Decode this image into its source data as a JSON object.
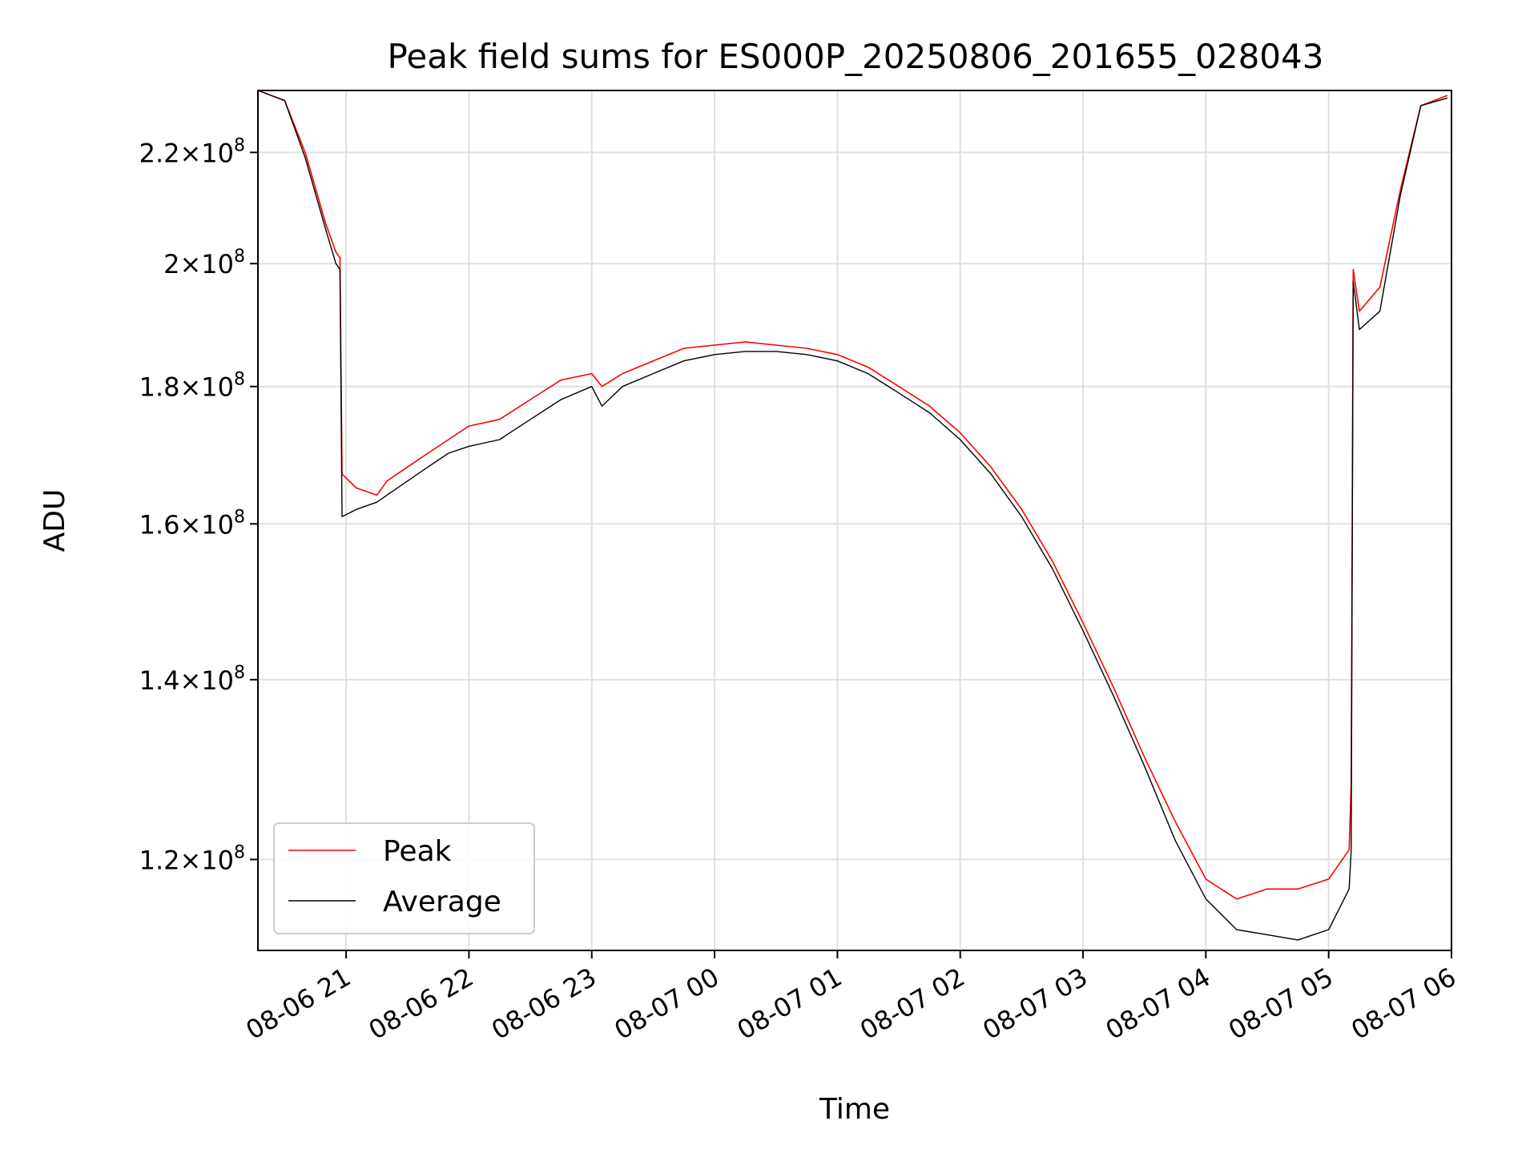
{
  "chart_data": {
    "type": "line",
    "title": "Peak field sums for ES000P_20250806_201655_028043",
    "xlabel": "Time",
    "ylabel": "ADU",
    "yscale": "log",
    "grid": true,
    "legend_position": "lower-left",
    "xlim": [
      "2025-08-06 20:16:55",
      "2025-08-07 06:00"
    ],
    "ylim": [
      111000000,
      232000000
    ],
    "x_ticks": [
      "08-06 21",
      "08-06 22",
      "08-06 23",
      "08-07 00",
      "08-07 01",
      "08-07 02",
      "08-07 03",
      "08-07 04",
      "08-07 05",
      "08-07 06"
    ],
    "y_ticks": [
      {
        "value": 120000000,
        "mantissa": "1.2",
        "base": "10",
        "exp": "8"
      },
      {
        "value": 140000000,
        "mantissa": "1.4",
        "base": "10",
        "exp": "8"
      },
      {
        "value": 160000000,
        "mantissa": "1.6",
        "base": "10",
        "exp": "8"
      },
      {
        "value": 180000000,
        "mantissa": "1.8",
        "base": "10",
        "exp": "8"
      },
      {
        "value": 200000000,
        "mantissa": "2",
        "base": "10",
        "exp": "8"
      },
      {
        "value": 220000000,
        "mantissa": "2.2",
        "base": "10",
        "exp": "8"
      }
    ],
    "series": [
      {
        "name": "Peak",
        "color": "#ff0000",
        "x": [
          "2025-08-06 20:17",
          "2025-08-06 20:30",
          "2025-08-06 20:40",
          "2025-08-06 20:50",
          "2025-08-06 20:55",
          "2025-08-06 20:57",
          "2025-08-06 20:58",
          "2025-08-06 21:05",
          "2025-08-06 21:15",
          "2025-08-06 21:20",
          "2025-08-06 21:30",
          "2025-08-06 21:40",
          "2025-08-06 21:50",
          "2025-08-06 22:00",
          "2025-08-06 22:15",
          "2025-08-06 22:30",
          "2025-08-06 22:45",
          "2025-08-06 23:00",
          "2025-08-06 23:05",
          "2025-08-06 23:15",
          "2025-08-06 23:30",
          "2025-08-06 23:45",
          "2025-08-07 00:00",
          "2025-08-07 00:15",
          "2025-08-07 00:30",
          "2025-08-07 00:45",
          "2025-08-07 01:00",
          "2025-08-07 01:15",
          "2025-08-07 01:30",
          "2025-08-07 01:45",
          "2025-08-07 02:00",
          "2025-08-07 02:15",
          "2025-08-07 02:30",
          "2025-08-07 02:45",
          "2025-08-07 03:00",
          "2025-08-07 03:15",
          "2025-08-07 03:30",
          "2025-08-07 03:45",
          "2025-08-07 04:00",
          "2025-08-07 04:15",
          "2025-08-07 04:30",
          "2025-08-07 04:45",
          "2025-08-07 05:00",
          "2025-08-07 05:10",
          "2025-08-07 05:11",
          "2025-08-07 05:12",
          "2025-08-07 05:15",
          "2025-08-07 05:25",
          "2025-08-07 05:35",
          "2025-08-07 05:45",
          "2025-08-07 05:58"
        ],
        "y": [
          232000000,
          230000000,
          220000000,
          207000000,
          202000000,
          201000000,
          167000000,
          165000000,
          164000000,
          166000000,
          168000000,
          170000000,
          172000000,
          174000000,
          175000000,
          178000000,
          181000000,
          182000000,
          180000000,
          182000000,
          184000000,
          186000000,
          186500000,
          187000000,
          186500000,
          186000000,
          185000000,
          183000000,
          180000000,
          177000000,
          173000000,
          168000000,
          162000000,
          155000000,
          147000000,
          139000000,
          131000000,
          124000000,
          118000000,
          116000000,
          117000000,
          117000000,
          118000000,
          121000000,
          128000000,
          199000000,
          192000000,
          196000000,
          213000000,
          229000000,
          231000000
        ]
      },
      {
        "name": "Average",
        "color": "#000000",
        "x": [
          "2025-08-06 20:17",
          "2025-08-06 20:30",
          "2025-08-06 20:40",
          "2025-08-06 20:50",
          "2025-08-06 20:55",
          "2025-08-06 20:57",
          "2025-08-06 20:58",
          "2025-08-06 21:05",
          "2025-08-06 21:15",
          "2025-08-06 21:20",
          "2025-08-06 21:30",
          "2025-08-06 21:40",
          "2025-08-06 21:50",
          "2025-08-06 22:00",
          "2025-08-06 22:15",
          "2025-08-06 22:30",
          "2025-08-06 22:45",
          "2025-08-06 23:00",
          "2025-08-06 23:05",
          "2025-08-06 23:15",
          "2025-08-06 23:30",
          "2025-08-06 23:45",
          "2025-08-07 00:00",
          "2025-08-07 00:15",
          "2025-08-07 00:30",
          "2025-08-07 00:45",
          "2025-08-07 01:00",
          "2025-08-07 01:15",
          "2025-08-07 01:30",
          "2025-08-07 01:45",
          "2025-08-07 02:00",
          "2025-08-07 02:15",
          "2025-08-07 02:30",
          "2025-08-07 02:45",
          "2025-08-07 03:00",
          "2025-08-07 03:15",
          "2025-08-07 03:30",
          "2025-08-07 03:45",
          "2025-08-07 04:00",
          "2025-08-07 04:15",
          "2025-08-07 04:30",
          "2025-08-07 04:45",
          "2025-08-07 05:00",
          "2025-08-07 05:10",
          "2025-08-07 05:11",
          "2025-08-07 05:12",
          "2025-08-07 05:15",
          "2025-08-07 05:25",
          "2025-08-07 05:35",
          "2025-08-07 05:45",
          "2025-08-07 05:58"
        ],
        "y": [
          232000000,
          230000000,
          219000000,
          206000000,
          200000000,
          199000000,
          161000000,
          162000000,
          163000000,
          164000000,
          166000000,
          168000000,
          170000000,
          171000000,
          172000000,
          175000000,
          178000000,
          180000000,
          177000000,
          180000000,
          182000000,
          184000000,
          185000000,
          185500000,
          185500000,
          185000000,
          184000000,
          182000000,
          179000000,
          176000000,
          172000000,
          167000000,
          161000000,
          154000000,
          146000000,
          138000000,
          130000000,
          122000000,
          116000000,
          113000000,
          112500000,
          112000000,
          113000000,
          117000000,
          121000000,
          197000000,
          189000000,
          192000000,
          212000000,
          229000000,
          230500000
        ]
      }
    ]
  }
}
